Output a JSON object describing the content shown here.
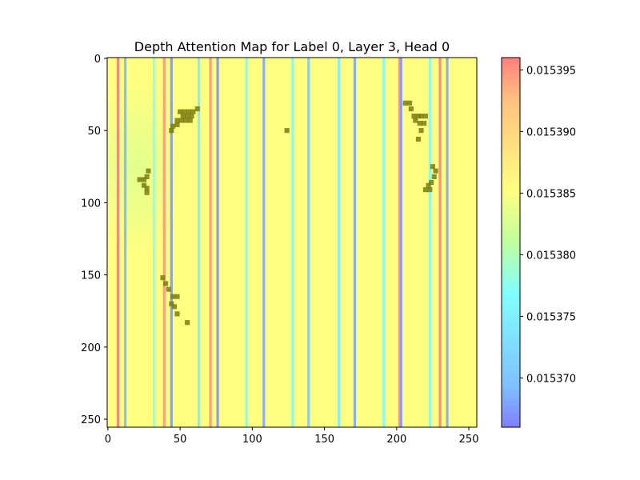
{
  "chart_data": {
    "type": "heatmap",
    "title": "Depth Attention Map for Label 0, Layer 3, Head 0",
    "xlabel": "",
    "ylabel": "",
    "xlim": [
      0,
      255
    ],
    "ylim": [
      255,
      0
    ],
    "x_ticks": [
      0,
      50,
      100,
      150,
      200,
      250
    ],
    "y_ticks": [
      0,
      50,
      100,
      150,
      200,
      250
    ],
    "x_tick_labels": [
      "0",
      "50",
      "100",
      "150",
      "200",
      "250"
    ],
    "y_tick_labels": [
      "0",
      "50",
      "100",
      "150",
      "200",
      "250"
    ],
    "colormap": "jet",
    "alpha": 0.5,
    "colorbar": {
      "min": 0.015366,
      "max": 0.015396,
      "ticks": [
        0.01537,
        0.015375,
        0.01538,
        0.015385,
        0.01539,
        0.015395
      ],
      "tick_labels": [
        "0.015370",
        "0.015375",
        "0.015380",
        "0.015385",
        "0.015390",
        "0.015395"
      ]
    },
    "base_value": 0.015386,
    "column_stripes": [
      {
        "x": 7,
        "value": 0.015393
      },
      {
        "x": 12,
        "value": 0.015373
      },
      {
        "x": 32,
        "value": 0.015378
      },
      {
        "x": 39,
        "value": 0.015391
      },
      {
        "x": 44,
        "value": 0.015371
      },
      {
        "x": 63,
        "value": 0.015376
      },
      {
        "x": 71,
        "value": 0.015391
      },
      {
        "x": 76,
        "value": 0.015371
      },
      {
        "x": 96,
        "value": 0.015377
      },
      {
        "x": 108,
        "value": 0.015372
      },
      {
        "x": 128,
        "value": 0.015377
      },
      {
        "x": 139,
        "value": 0.015374
      },
      {
        "x": 160,
        "value": 0.015376
      },
      {
        "x": 171,
        "value": 0.015372
      },
      {
        "x": 191,
        "value": 0.015377
      },
      {
        "x": 202,
        "value": 0.015391
      },
      {
        "x": 203,
        "value": 0.015371
      },
      {
        "x": 223,
        "value": 0.015377
      },
      {
        "x": 230,
        "value": 0.015392
      },
      {
        "x": 235,
        "value": 0.015372
      }
    ],
    "overlay_cells": [
      [
        50,
        37
      ],
      [
        53,
        37
      ],
      [
        56,
        37
      ],
      [
        59,
        37
      ],
      [
        62,
        35
      ],
      [
        52,
        40
      ],
      [
        55,
        40
      ],
      [
        58,
        40
      ],
      [
        48,
        43
      ],
      [
        51,
        43
      ],
      [
        54,
        43
      ],
      [
        57,
        43
      ],
      [
        45,
        47
      ],
      [
        48,
        46
      ],
      [
        44,
        50
      ],
      [
        22,
        84
      ],
      [
        25,
        84
      ],
      [
        27,
        82
      ],
      [
        28,
        78
      ],
      [
        25,
        88
      ],
      [
        27,
        90
      ],
      [
        27,
        93
      ],
      [
        124,
        50
      ],
      [
        206,
        31
      ],
      [
        209,
        31
      ],
      [
        210,
        35
      ],
      [
        212,
        40
      ],
      [
        215,
        40
      ],
      [
        217,
        40
      ],
      [
        220,
        40
      ],
      [
        213,
        43
      ],
      [
        216,
        45
      ],
      [
        219,
        45
      ],
      [
        217,
        50
      ],
      [
        215,
        56
      ],
      [
        225,
        75
      ],
      [
        227,
        78
      ],
      [
        226,
        82
      ],
      [
        224,
        86
      ],
      [
        222,
        88
      ],
      [
        220,
        91
      ],
      [
        223,
        91
      ],
      [
        38,
        152
      ],
      [
        40,
        156
      ],
      [
        42,
        160
      ],
      [
        45,
        165
      ],
      [
        48,
        165
      ],
      [
        44,
        170
      ],
      [
        46,
        172
      ],
      [
        48,
        177
      ],
      [
        55,
        183
      ]
    ]
  }
}
